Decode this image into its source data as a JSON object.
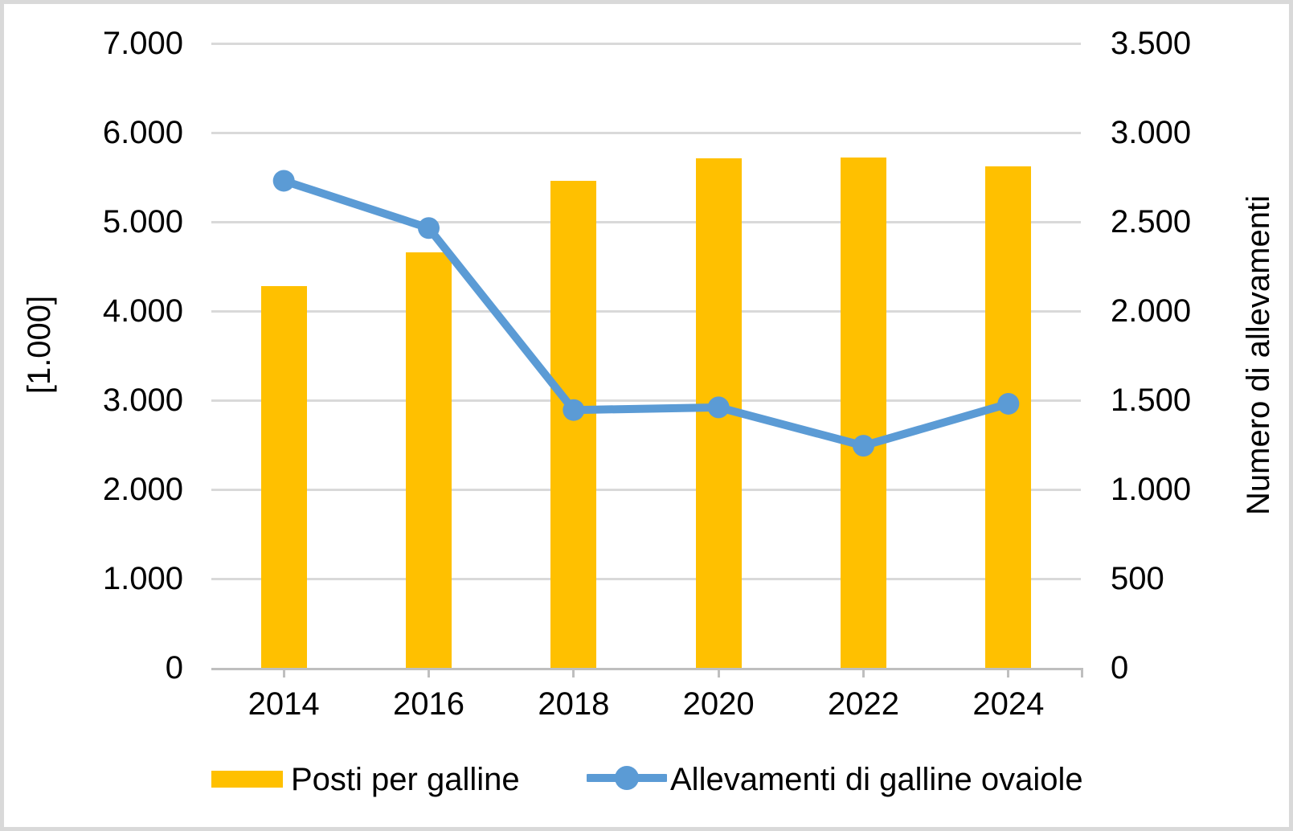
{
  "chart_data": {
    "type": "combo",
    "categories": [
      "2014",
      "2016",
      "2018",
      "2020",
      "2022",
      "2024"
    ],
    "series": [
      {
        "name": "Posti per galline",
        "type": "bar",
        "axis": "left",
        "color": "#FFC000",
        "values": [
          4280,
          4660,
          5460,
          5710,
          5725,
          5620
        ]
      },
      {
        "name": "Allevamenti di galline ovaiole",
        "type": "line",
        "axis": "right",
        "color": "#5B9BD5",
        "values": [
          2730,
          2465,
          1445,
          1460,
          1245,
          1480
        ]
      }
    ],
    "left_axis": {
      "title": "[1.000]",
      "min": 0,
      "max": 7000,
      "step": 1000,
      "tick_labels": [
        "0",
        "1.000",
        "2.000",
        "3.000",
        "4.000",
        "5.000",
        "6.000",
        "7.000"
      ]
    },
    "right_axis": {
      "title": "Numero di allevamenti",
      "min": 0,
      "max": 3500,
      "step": 500,
      "tick_labels": [
        "0",
        "500",
        "1.000",
        "1.500",
        "2.000",
        "2.500",
        "3.000",
        "3.500"
      ]
    },
    "grid": true,
    "legend_position": "bottom",
    "palette": {
      "gridline": "#D9D9D9",
      "axis_line": "#BFBFBF",
      "tick": "#BFBFBF",
      "text": "#000000",
      "background": "#FFFFFF",
      "frame_border": "#D9D9D9"
    }
  }
}
